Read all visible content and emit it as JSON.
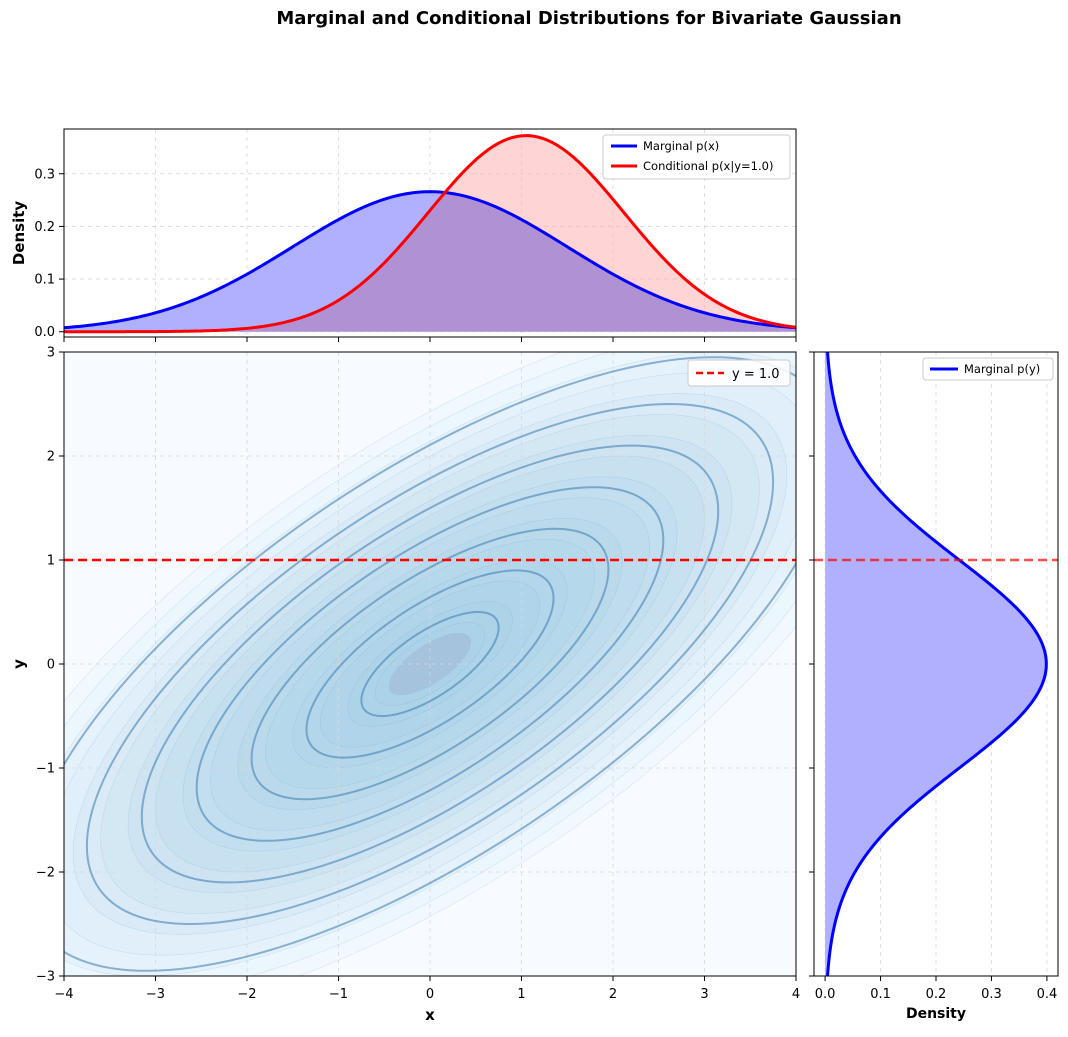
{
  "chart_data": {
    "title": "Marginal and Conditional Distributions for Bivariate Gaussian",
    "model": {
      "mu_x": 0,
      "mu_y": 0,
      "sigma_x": 1.5,
      "sigma_y": 1.0,
      "rho": 0.7,
      "condition_y": 1.0
    },
    "colors": {
      "marginal": "#0000ff",
      "conditional": "#ff0000",
      "marginal_fill": "#b0b0ff",
      "conditional_fill": "#ffb0b0",
      "contour": "#4682b4",
      "contour_fill": "#a6d0e8"
    },
    "top_panel": {
      "type": "line",
      "ylabel": "Density",
      "xlim": [
        -4,
        4
      ],
      "ylim": [
        -0.01,
        0.385
      ],
      "yticks": [
        0.0,
        0.1,
        0.2,
        0.3
      ],
      "yticklabels": [
        "0.0",
        "0.1",
        "0.2",
        "0.3"
      ],
      "series": [
        {
          "name": "Marginal p(x)",
          "dist": {
            "mean": 0,
            "sd": 1.5
          }
        },
        {
          "name": "Conditional p(x|y=1.0)",
          "dist": {
            "mean": 1.05,
            "sd": 1.0712
          }
        }
      ]
    },
    "main_panel": {
      "type": "contour",
      "xlabel": "x",
      "ylabel": "y",
      "xlim": [
        -4,
        4
      ],
      "ylim": [
        -3,
        3
      ],
      "xticks": [
        -4,
        -3,
        -2,
        -1,
        0,
        1,
        2,
        3,
        4
      ],
      "xticklabels": [
        "−4",
        "−3",
        "−2",
        "−1",
        "0",
        "1",
        "2",
        "3",
        "4"
      ],
      "yticks": [
        -3,
        -2,
        -1,
        0,
        1,
        2,
        3
      ],
      "yticklabels": [
        "−3",
        "−2",
        "−1",
        "0",
        "1",
        "2",
        "3"
      ],
      "contour_mahalanobis_levels": [
        0.5,
        0.9,
        1.3,
        1.7,
        2.1,
        2.5,
        2.95
      ],
      "hline": {
        "y": 1.0,
        "label": "y = 1.0"
      }
    },
    "right_panel": {
      "type": "line",
      "xlabel": "Density",
      "xlim": [
        -0.02,
        0.42
      ],
      "xticks": [
        0.0,
        0.1,
        0.2,
        0.3,
        0.4
      ],
      "xticklabels": [
        "0.0",
        "0.1",
        "0.2",
        "0.3",
        "0.4"
      ],
      "series": [
        {
          "name": "Marginal p(y)",
          "dist": {
            "mean": 0,
            "sd": 1.0
          }
        }
      ]
    }
  }
}
